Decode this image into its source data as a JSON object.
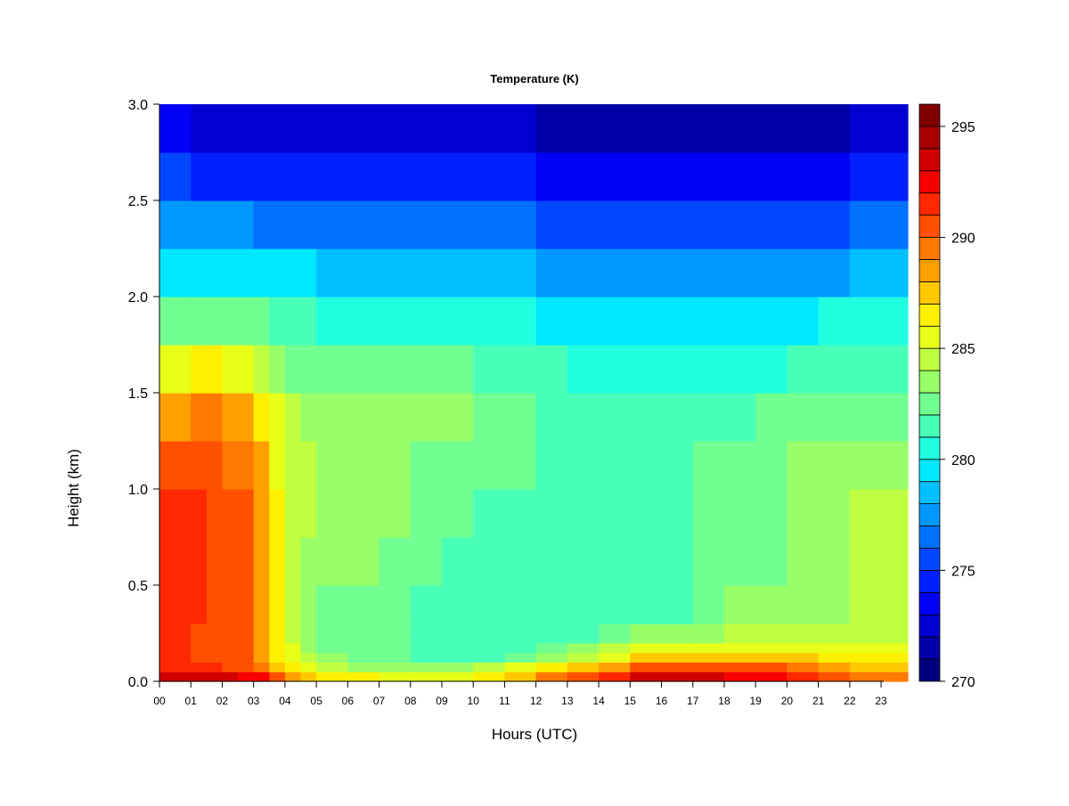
{
  "chart_data": {
    "type": "heatmap",
    "title": "Temperature (K)",
    "xlabel": "Hours (UTC)",
    "ylabel": "Height (km)",
    "x_ticks": [
      "00",
      "01",
      "02",
      "03",
      "04",
      "05",
      "06",
      "07",
      "08",
      "09",
      "10",
      "11",
      "12",
      "13",
      "14",
      "15",
      "16",
      "17",
      "18",
      "19",
      "20",
      "21",
      "22",
      "23"
    ],
    "y_ticks": [
      "0.0",
      "0.5",
      "1.0",
      "1.5",
      "2.0",
      "2.5",
      "3.0"
    ],
    "xlim": [
      0,
      23.85
    ],
    "ylim": [
      0,
      3.0
    ],
    "colorbar": {
      "min": 270,
      "max": 296,
      "step": 1,
      "tick_values": [
        270,
        275,
        280,
        285,
        290,
        295
      ],
      "tick_labels": [
        "270",
        "275",
        "280",
        "285",
        "290",
        "295"
      ],
      "colors": [
        "#00007f",
        "#0000a8",
        "#0000d0",
        "#0000f8",
        "#0020ff",
        "#0048ff",
        "#0070ff",
        "#0098ff",
        "#00c0ff",
        "#00e8ff",
        "#20ffe0",
        "#48ffb8",
        "#70ff90",
        "#98ff68",
        "#c0ff40",
        "#e8ff18",
        "#fff000",
        "#ffc800",
        "#ffa000",
        "#ff7800",
        "#ff5000",
        "#ff2800",
        "#f80000",
        "#d00000",
        "#a80000",
        "#800000"
      ]
    },
    "grid_times": [
      0,
      0.5,
      1,
      1.5,
      2,
      2.5,
      3,
      3.5,
      4,
      4.5,
      5,
      6,
      7,
      8,
      9,
      10,
      11,
      12,
      13,
      14,
      15,
      16,
      17,
      18,
      19,
      20,
      21,
      22,
      23,
      23.85
    ],
    "grid_heights": [
      0,
      0.05,
      0.1,
      0.15,
      0.2,
      0.3,
      0.5,
      0.75,
      1.0,
      1.25,
      1.5,
      1.75,
      2.0,
      2.25,
      2.5,
      2.75,
      3.0
    ],
    "temperature_profiles": [
      {
        "hour": 0,
        "values": [
          295,
          292,
          291,
          291,
          291,
          291,
          292,
          291,
          291,
          290,
          287,
          284,
          281,
          278,
          276,
          274,
          272
        ]
      },
      {
        "hour": 1,
        "values": [
          295,
          292,
          291,
          291,
          291,
          291,
          292,
          292,
          291,
          290,
          288,
          284,
          281,
          278,
          276,
          274,
          272
        ]
      },
      {
        "hour": 2,
        "values": [
          295,
          292,
          290,
          290,
          290,
          290,
          290,
          290,
          290,
          290,
          288,
          284,
          281,
          278,
          276,
          273,
          272
        ]
      },
      {
        "hour": 3,
        "values": [
          294,
          291,
          290,
          290,
          290,
          290,
          290,
          290,
          290,
          289,
          287,
          284,
          281,
          278,
          276,
          273,
          272
        ]
      },
      {
        "hour": 3.5,
        "values": [
          293,
          290,
          288,
          287,
          287,
          287,
          287,
          287,
          287,
          286,
          285,
          283,
          280,
          278,
          275,
          273,
          272
        ]
      },
      {
        "hour": 4,
        "values": [
          290,
          287,
          286,
          286,
          286,
          285,
          285,
          285,
          285,
          285,
          284,
          282,
          280,
          278,
          275,
          273,
          272
        ]
      },
      {
        "hour": 5,
        "values": [
          288,
          285,
          284,
          283,
          283,
          283,
          283,
          284,
          284,
          284,
          283,
          282,
          280,
          278,
          275,
          273,
          271
        ]
      },
      {
        "hour": 8,
        "values": [
          287,
          284,
          282,
          282,
          282,
          282,
          282,
          283,
          283,
          283,
          283,
          281,
          280,
          277,
          275,
          273,
          271
        ]
      },
      {
        "hour": 10,
        "values": [
          287,
          285,
          282,
          281,
          281,
          281,
          281,
          282,
          282,
          283,
          283,
          281,
          280,
          277,
          275,
          273,
          271
        ]
      },
      {
        "hour": 12,
        "values": [
          290,
          287,
          284,
          282,
          281,
          281,
          281,
          281,
          282,
          282,
          282,
          281,
          279,
          277,
          275,
          273,
          271
        ]
      },
      {
        "hour": 14,
        "values": [
          292,
          289,
          286,
          284,
          283,
          281,
          281,
          281,
          281,
          281,
          281,
          280,
          278,
          276,
          274,
          272,
          270
        ]
      },
      {
        "hour": 15.5,
        "values": [
          294,
          292,
          289,
          286,
          284,
          282,
          281,
          281,
          281,
          281,
          281,
          280,
          278,
          276,
          274,
          272,
          270
        ]
      },
      {
        "hour": 17,
        "values": [
          294,
          292,
          289,
          286,
          284,
          282,
          282,
          282,
          282,
          282,
          281,
          280,
          278,
          276,
          274,
          272,
          270
        ]
      },
      {
        "hour": 18,
        "values": [
          294,
          292,
          289,
          286,
          285,
          283,
          283,
          282,
          282,
          282,
          281,
          280,
          278,
          276,
          274,
          272,
          270
        ]
      },
      {
        "hour": 20,
        "values": [
          293,
          291,
          289,
          286,
          285,
          284,
          283,
          283,
          283,
          283,
          282,
          280,
          278,
          276,
          274,
          272,
          270
        ]
      },
      {
        "hour": 21,
        "values": [
          292,
          290,
          288,
          286,
          285,
          284,
          283,
          283,
          283,
          283,
          282,
          281,
          279,
          276,
          274,
          272,
          271
        ]
      },
      {
        "hour": 22,
        "values": [
          290,
          288,
          287,
          286,
          285,
          284,
          284,
          284,
          284,
          283,
          282,
          281,
          279,
          277,
          275,
          273,
          271
        ]
      },
      {
        "hour": 23.85,
        "values": [
          290,
          288,
          287,
          286,
          285,
          285,
          284,
          284,
          284,
          283,
          282,
          281,
          279,
          277,
          275,
          273,
          271
        ]
      }
    ]
  }
}
